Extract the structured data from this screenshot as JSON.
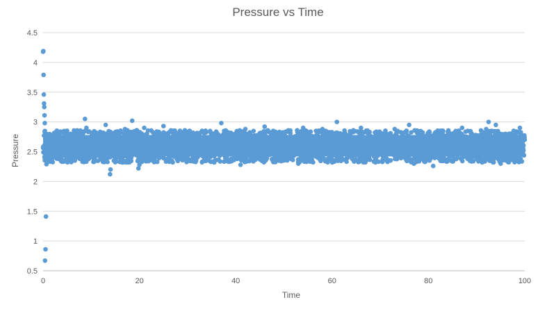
{
  "chart_data": {
    "type": "scatter",
    "title": "Pressure vs Time",
    "xlabel": "Time",
    "ylabel": "Pressure",
    "xlim": [
      0,
      100
    ],
    "ylim": [
      0.5,
      4.5
    ],
    "x_ticks": [
      "0",
      "20",
      "40",
      "60",
      "80",
      "100"
    ],
    "y_ticks": [
      "0.5",
      "1",
      "1.5",
      "2",
      "2.5",
      "3",
      "3.5",
      "4",
      "4.5"
    ],
    "grid": "horizontal",
    "legend": "none",
    "marker_color": "#5B9BD5",
    "series": [
      {
        "x": [
          0,
          0.05,
          0.1,
          0.15,
          0.2,
          0.25,
          0.3,
          0.35,
          0.4,
          0.5,
          0.6,
          0.7,
          0.8,
          0.9,
          1.0,
          1.2,
          1.5,
          2,
          2.5,
          3,
          3.5,
          4,
          5,
          6,
          7,
          8,
          8.7,
          9,
          10,
          11,
          12,
          13,
          13.5,
          13.9,
          14,
          15,
          16,
          17,
          18,
          18.5,
          19,
          19.8,
          20,
          21,
          22,
          23,
          24,
          25,
          26,
          27,
          28,
          29,
          30,
          31,
          32,
          33,
          34,
          35,
          36,
          37,
          38,
          39,
          40,
          41,
          42,
          43,
          44,
          45,
          46,
          47,
          48,
          49,
          50,
          51,
          52,
          53,
          54,
          55,
          56,
          57,
          58,
          59,
          60,
          61,
          62,
          63,
          64,
          65,
          66,
          67,
          68,
          69,
          70,
          71,
          72,
          73,
          74,
          75,
          76,
          77,
          78,
          79,
          80,
          81,
          82,
          83,
          84,
          85,
          86,
          87,
          88,
          89,
          90,
          91,
          92,
          92.5,
          93,
          94,
          95,
          96,
          97,
          98,
          99,
          100
        ],
        "y": [
          4.18,
          4.19,
          3.79,
          3.46,
          3.31,
          3.25,
          3.11,
          2.98,
          0.67,
          0.86,
          1.41,
          2.29,
          2.74,
          2.35,
          2.65,
          2.45,
          2.78,
          2.55,
          2.62,
          2.8,
          2.48,
          2.71,
          2.58,
          2.66,
          2.5,
          2.77,
          3.05,
          2.9,
          2.6,
          2.72,
          2.55,
          2.95,
          2.4,
          2.12,
          2.2,
          2.7,
          2.62,
          2.88,
          2.66,
          3.02,
          2.5,
          2.22,
          2.28,
          2.9,
          2.6,
          2.75,
          2.48,
          2.93,
          2.55,
          2.66,
          2.4,
          2.82,
          2.6,
          2.7,
          2.5,
          2.85,
          2.62,
          2.58,
          2.78,
          2.98,
          2.45,
          2.7,
          2.6,
          2.28,
          2.88,
          2.52,
          2.7,
          2.62,
          2.92,
          2.5,
          2.66,
          2.35,
          2.8,
          2.6,
          2.72,
          2.3,
          2.9,
          2.55,
          2.68,
          2.48,
          2.88,
          2.62,
          2.7,
          3.0,
          2.45,
          2.78,
          2.58,
          2.66,
          2.9,
          2.5,
          2.7,
          2.32,
          2.82,
          2.6,
          2.55,
          2.88,
          2.42,
          2.68,
          2.95,
          2.3,
          2.78,
          2.62,
          2.5,
          2.26,
          2.85,
          2.6,
          2.72,
          2.48,
          2.66,
          2.9,
          2.58,
          2.4,
          2.7,
          2.62,
          2.88,
          3.0,
          2.55,
          2.95,
          2.3,
          2.8,
          2.62,
          2.5,
          2.9,
          2.7
        ]
      }
    ]
  }
}
